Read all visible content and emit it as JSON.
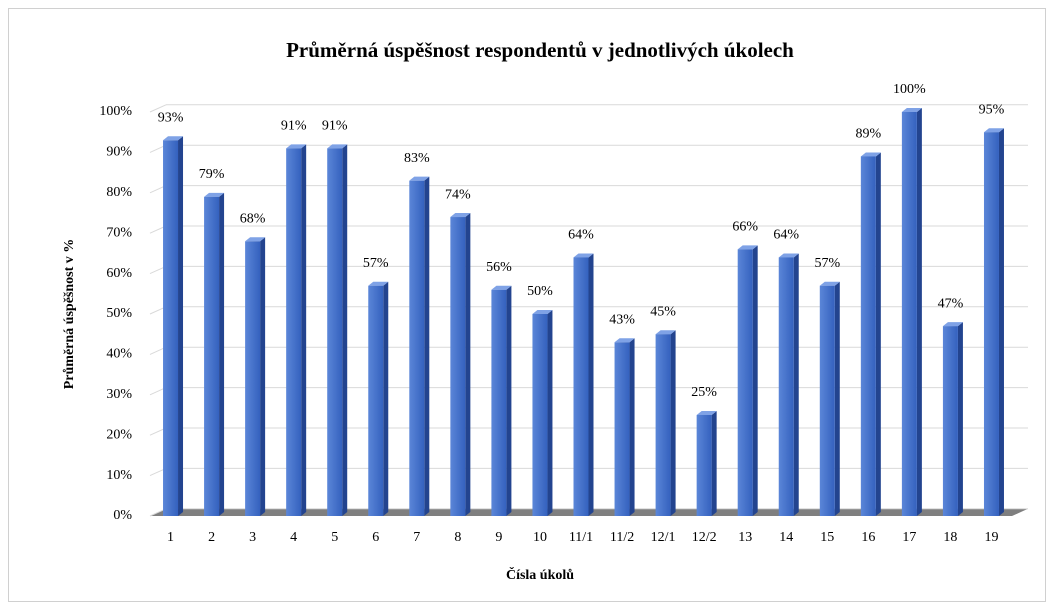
{
  "chart_data": {
    "type": "bar3d",
    "title": "Průměrná úspěšnost respondentů v jednotlivých úkolech",
    "x_label": "Čísla úkolů",
    "y_label": "Průměrná úspěšnost v %",
    "categories": [
      "1",
      "2",
      "3",
      "4",
      "5",
      "6",
      "7",
      "8",
      "9",
      "10",
      "11/1",
      "11/2",
      "12/1",
      "12/2",
      "13",
      "14",
      "15",
      "16",
      "17",
      "18",
      "19"
    ],
    "values": [
      93,
      79,
      68,
      91,
      91,
      57,
      83,
      74,
      56,
      50,
      64,
      43,
      45,
      25,
      66,
      64,
      57,
      89,
      100,
      47,
      95
    ],
    "value_labels": [
      "93%",
      "79%",
      "68%",
      "91%",
      "91%",
      "57%",
      "83%",
      "74%",
      "56%",
      "50%",
      "64%",
      "43%",
      "45%",
      "25%",
      "66%",
      "64%",
      "57%",
      "89%",
      "100%",
      "47%",
      "95%"
    ],
    "color": "#3f6cc8",
    "ylim": [
      0,
      100
    ],
    "yticks": [
      {
        "value": 0,
        "label": "0%"
      },
      {
        "value": 10,
        "label": "10%"
      },
      {
        "value": 20,
        "label": "20%"
      },
      {
        "value": 30,
        "label": "30%"
      },
      {
        "value": 40,
        "label": "40%"
      },
      {
        "value": 50,
        "label": "50%"
      },
      {
        "value": 60,
        "label": "60%"
      },
      {
        "value": 70,
        "label": "70%"
      },
      {
        "value": 80,
        "label": "80%"
      },
      {
        "value": 90,
        "label": "90%"
      },
      {
        "value": 100,
        "label": "100%"
      }
    ],
    "grid": true
  }
}
